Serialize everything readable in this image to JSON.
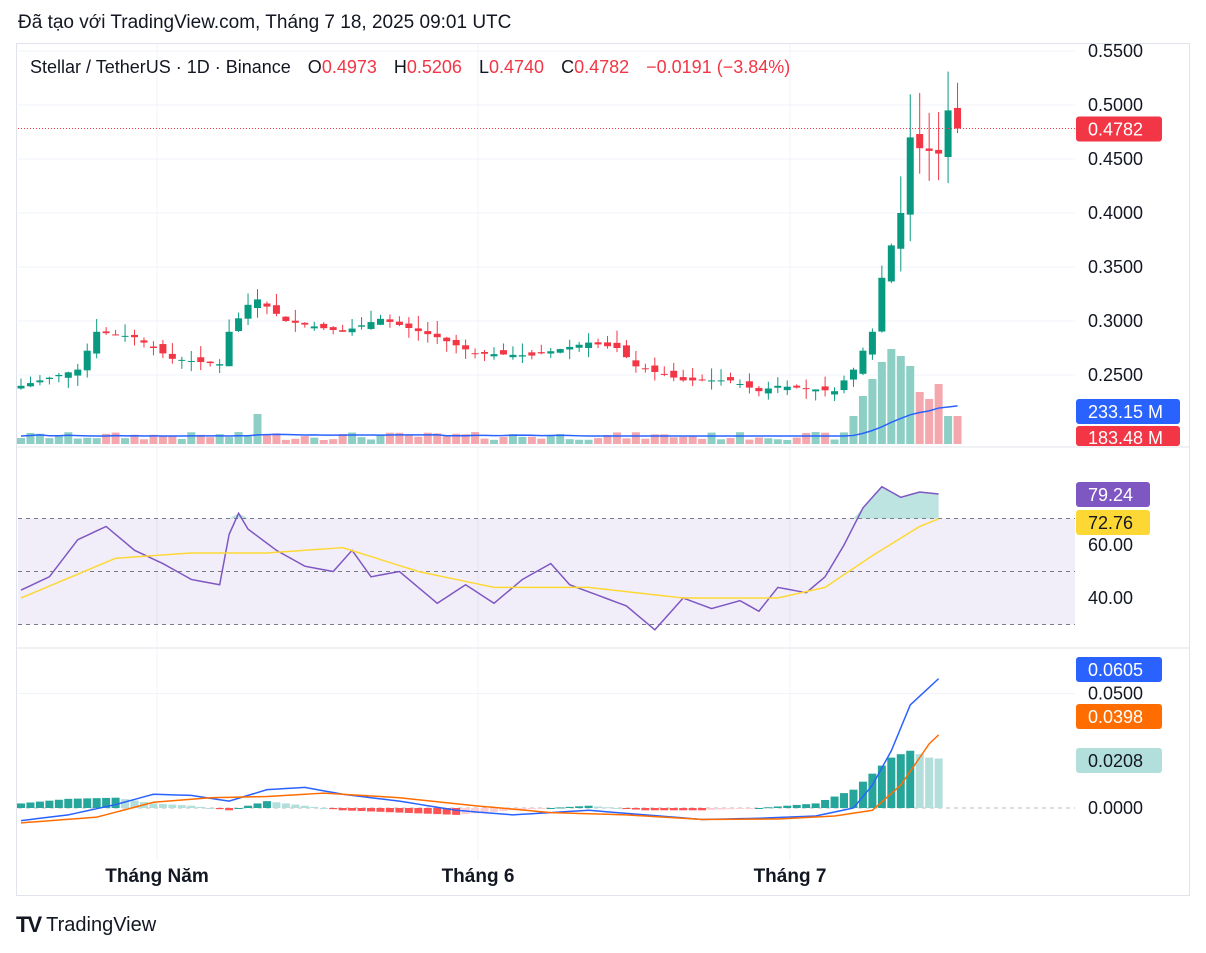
{
  "header": {
    "title": "Đã tạo với TradingView.com, Tháng 7 18, 2025 09:01 UTC"
  },
  "legend": {
    "symbol": "Stellar / TetherUS · 1D · Binance",
    "o_label": "O",
    "o_value": "0.4973",
    "h_label": "H",
    "h_value": "0.5206",
    "l_label": "L",
    "l_value": "0.4740",
    "c_label": "C",
    "c_value": "0.4782",
    "change": "−0.0191 (−3.84%)"
  },
  "footer": {
    "logo": "TV",
    "brand": "TradingView"
  },
  "colors": {
    "up": "#089981",
    "down": "#f23645",
    "vol_up": "#8dcfc5",
    "vol_down": "#f4a8ae",
    "vol_ma": "#2962ff",
    "rsi": "#7e57c2",
    "rsi_ma": "#fdd835",
    "macd": "#2962ff",
    "signal": "#ff6d00",
    "hist_up_strong": "#26a69a",
    "hist_up_weak": "#b2dfdb",
    "hist_down_strong": "#ff5252",
    "hist_down_weak": "#ffcdd2"
  },
  "chart_data": [
    {
      "type": "candlestick",
      "title": "Stellar / TetherUS · 1D · Binance",
      "x_labels": [
        "Tháng Năm",
        "Tháng 6",
        "Tháng 7"
      ],
      "ylim": [
        0.2,
        0.55
      ],
      "y_ticks": [
        "0.5500",
        "0.5000",
        "0.4500",
        "0.4000",
        "0.3500",
        "0.3000",
        "0.2500"
      ],
      "last_price_tag": "0.4782",
      "last_price": 0.4782,
      "close_points": [
        [
          0,
          0.24
        ],
        [
          6,
          0.255
        ],
        [
          8,
          0.29
        ],
        [
          12,
          0.285
        ],
        [
          16,
          0.265
        ],
        [
          21,
          0.26
        ],
        [
          22,
          0.29
        ],
        [
          24,
          0.315
        ],
        [
          25,
          0.32
        ],
        [
          28,
          0.3
        ],
        [
          34,
          0.29
        ],
        [
          38,
          0.302
        ],
        [
          44,
          0.285
        ],
        [
          48,
          0.27
        ],
        [
          54,
          0.268
        ],
        [
          60,
          0.28
        ],
        [
          63,
          0.275
        ],
        [
          65,
          0.258
        ],
        [
          70,
          0.245
        ],
        [
          75,
          0.245
        ],
        [
          78,
          0.235
        ],
        [
          80,
          0.24
        ],
        [
          86,
          0.235
        ],
        [
          88,
          0.255
        ],
        [
          90,
          0.29
        ],
        [
          91,
          0.34
        ],
        [
          93,
          0.4
        ],
        [
          94,
          0.47
        ],
        [
          95,
          0.46
        ],
        [
          97,
          0.455
        ],
        [
          98,
          0.495
        ],
        [
          99,
          0.478
        ]
      ],
      "volume_ma_tag": "233.15 M",
      "volume_tag": "183.48 M"
    },
    {
      "type": "line",
      "series": [
        {
          "name": "RSI"
        },
        {
          "name": "RSI MA"
        }
      ],
      "y_ticks": [
        "60.00",
        "40.00"
      ],
      "levels": [
        70,
        50,
        30
      ],
      "rsi_tag": "79.24",
      "rsi_ma_tag": "72.76",
      "rsi_points": [
        [
          0,
          43
        ],
        [
          3,
          48
        ],
        [
          6,
          62
        ],
        [
          9,
          67
        ],
        [
          12,
          58
        ],
        [
          15,
          53
        ],
        [
          18,
          47
        ],
        [
          21,
          45
        ],
        [
          22,
          64
        ],
        [
          23,
          72
        ],
        [
          24,
          66
        ],
        [
          27,
          58
        ],
        [
          30,
          52
        ],
        [
          33,
          50
        ],
        [
          35,
          58
        ],
        [
          37,
          48
        ],
        [
          40,
          50
        ],
        [
          44,
          38
        ],
        [
          47,
          45
        ],
        [
          50,
          38
        ],
        [
          53,
          47
        ],
        [
          56,
          53
        ],
        [
          58,
          45
        ],
        [
          61,
          41
        ],
        [
          64,
          37
        ],
        [
          67,
          28
        ],
        [
          70,
          40
        ],
        [
          73,
          36
        ],
        [
          76,
          39
        ],
        [
          78,
          35
        ],
        [
          80,
          44
        ],
        [
          83,
          42
        ],
        [
          85,
          48
        ],
        [
          87,
          60
        ],
        [
          89,
          74
        ],
        [
          91,
          82
        ],
        [
          93,
          78
        ],
        [
          95,
          80
        ],
        [
          97,
          79.24
        ]
      ],
      "rsi_ma_points": [
        [
          0,
          40
        ],
        [
          10,
          55
        ],
        [
          18,
          57
        ],
        [
          26,
          57
        ],
        [
          34,
          59
        ],
        [
          42,
          50
        ],
        [
          50,
          44
        ],
        [
          60,
          44
        ],
        [
          70,
          40
        ],
        [
          80,
          40
        ],
        [
          85,
          44
        ],
        [
          90,
          56
        ],
        [
          95,
          67
        ],
        [
          99,
          72.76
        ]
      ]
    },
    {
      "type": "line",
      "series": [
        {
          "name": "MACD"
        },
        {
          "name": "Signal"
        },
        {
          "name": "Histogram"
        }
      ],
      "ylim": [
        -0.015,
        0.065
      ],
      "y_ticks": [
        "0.0500",
        "0.0000"
      ],
      "macd_tag": "0.0605",
      "signal_tag": "0.0398",
      "hist_tag": "0.0208",
      "macd_points": [
        [
          0,
          -0.0055
        ],
        [
          5,
          -0.003
        ],
        [
          10,
          0.0015
        ],
        [
          14,
          0.006
        ],
        [
          18,
          0.0055
        ],
        [
          22,
          0.003
        ],
        [
          26,
          0.008
        ],
        [
          30,
          0.009
        ],
        [
          34,
          0.006
        ],
        [
          40,
          0.003
        ],
        [
          46,
          -0.001
        ],
        [
          52,
          -0.003
        ],
        [
          60,
          -0.001
        ],
        [
          66,
          -0.003
        ],
        [
          72,
          -0.005
        ],
        [
          78,
          -0.0045
        ],
        [
          84,
          -0.0035
        ],
        [
          88,
          0.0
        ],
        [
          90,
          0.01
        ],
        [
          92,
          0.025
        ],
        [
          94,
          0.045
        ],
        [
          97,
          0.0565
        ],
        [
          99,
          0.0605
        ]
      ],
      "signal_points": [
        [
          0,
          -0.0065
        ],
        [
          8,
          -0.004
        ],
        [
          14,
          0.0025
        ],
        [
          20,
          0.0045
        ],
        [
          26,
          0.005
        ],
        [
          32,
          0.0065
        ],
        [
          40,
          0.0045
        ],
        [
          48,
          0.001
        ],
        [
          56,
          -0.002
        ],
        [
          64,
          -0.003
        ],
        [
          72,
          -0.005
        ],
        [
          80,
          -0.0048
        ],
        [
          86,
          -0.0035
        ],
        [
          90,
          -0.001
        ],
        [
          93,
          0.01
        ],
        [
          96,
          0.028
        ],
        [
          99,
          0.0398
        ]
      ],
      "hist_values": [
        [
          0,
          0.002
        ],
        [
          5,
          0.004
        ],
        [
          10,
          0.0045
        ],
        [
          14,
          0.002
        ],
        [
          18,
          0.001
        ],
        [
          22,
          -0.001
        ],
        [
          26,
          0.003
        ],
        [
          30,
          0.001
        ],
        [
          34,
          -0.001
        ],
        [
          40,
          -0.002
        ],
        [
          46,
          -0.003
        ],
        [
          52,
          -0.001
        ],
        [
          60,
          0.001
        ],
        [
          66,
          -0.001
        ],
        [
          72,
          -0.001
        ],
        [
          78,
          0.0
        ],
        [
          84,
          0.002
        ],
        [
          88,
          0.008
        ],
        [
          90,
          0.015
        ],
        [
          92,
          0.022
        ],
        [
          94,
          0.025
        ],
        [
          96,
          0.022
        ],
        [
          99,
          0.0208
        ]
      ]
    }
  ]
}
